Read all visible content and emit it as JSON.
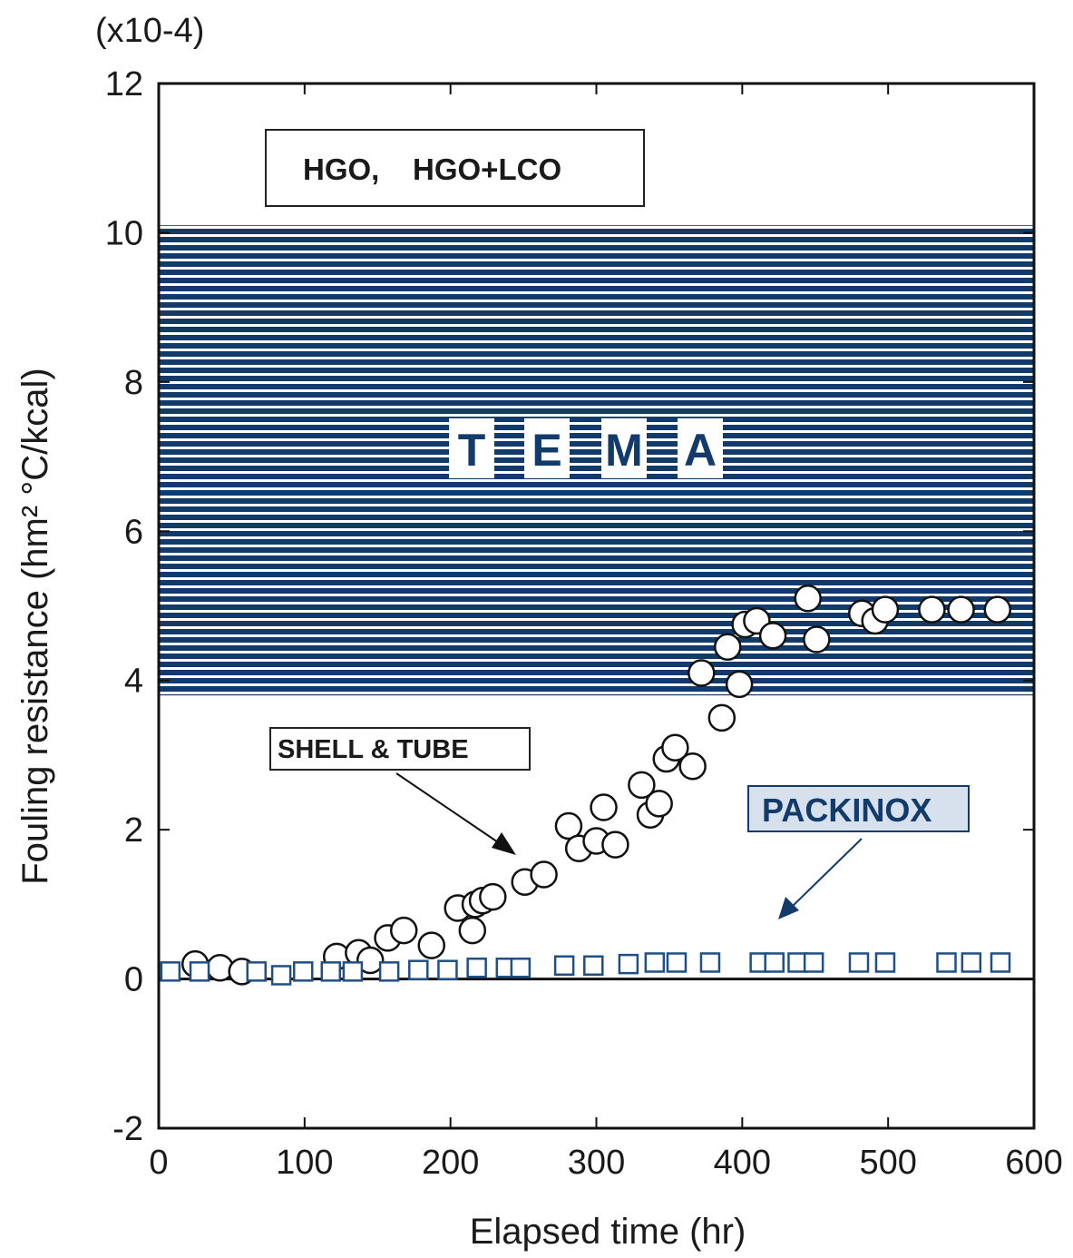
{
  "chart_data": {
    "type": "scatter",
    "title": "",
    "xlabel": "Elapsed time (hr)",
    "ylabel": "Fouling resistance (hm² °C/kcal)",
    "y_multiplier": "(x10-4)",
    "xlim": [
      0,
      600
    ],
    "ylim": [
      -2,
      12
    ],
    "x_ticks": [
      "0",
      "100",
      "200",
      "300",
      "400",
      "500",
      "600"
    ],
    "y_ticks": [
      "-2",
      "0",
      "2",
      "4",
      "6",
      "8",
      "10",
      "12"
    ],
    "x_tick_values": [
      0,
      100,
      200,
      300,
      400,
      500,
      600
    ],
    "y_tick_values": [
      -2,
      0,
      2,
      4,
      6,
      8,
      10,
      12
    ],
    "grid": false,
    "legend_box": "HGO,    HGO+LCO",
    "band": {
      "label": "T E M A",
      "letters": [
        "T",
        "E",
        "M",
        "A"
      ],
      "y_range": [
        3.8,
        10.1
      ],
      "color": "#123a6b"
    },
    "series": [
      {
        "name": "SHELL & TUBE",
        "marker": "circle",
        "x": [
          25,
          42,
          57,
          122,
          137,
          145,
          157,
          168,
          187,
          205,
          215,
          217,
          222,
          229,
          251,
          264,
          281,
          288,
          300,
          305,
          313,
          331,
          337,
          343,
          348,
          354,
          366,
          372,
          386,
          390,
          398,
          402,
          410,
          421,
          445,
          451,
          482,
          491,
          498,
          530,
          550,
          575
        ],
        "y": [
          0.2,
          0.15,
          0.1,
          0.3,
          0.35,
          0.25,
          0.55,
          0.65,
          0.45,
          0.95,
          0.65,
          1.0,
          1.05,
          1.1,
          1.3,
          1.4,
          2.05,
          1.75,
          1.85,
          2.3,
          1.8,
          2.6,
          2.2,
          2.35,
          2.95,
          3.1,
          2.85,
          4.1,
          3.5,
          4.45,
          3.95,
          4.75,
          4.8,
          4.6,
          5.1,
          4.55,
          4.9,
          4.8,
          4.95,
          4.95,
          4.95,
          4.95
        ]
      },
      {
        "name": "PACKINOX",
        "marker": "square",
        "color": "#1f4f85",
        "x": [
          8,
          28,
          67,
          84,
          99,
          118,
          133,
          158,
          178,
          198,
          218,
          238,
          248,
          278,
          298,
          322,
          340,
          355,
          378,
          412,
          422,
          438,
          449,
          480,
          498,
          540,
          557,
          577
        ],
        "y": [
          0.1,
          0.1,
          0.1,
          0.05,
          0.1,
          0.1,
          0.1,
          0.1,
          0.12,
          0.12,
          0.15,
          0.15,
          0.15,
          0.18,
          0.18,
          0.2,
          0.22,
          0.22,
          0.22,
          0.22,
          0.22,
          0.22,
          0.22,
          0.22,
          0.22,
          0.22,
          0.22,
          0.22
        ]
      }
    ],
    "annotations": {
      "shell_label": "SHELL & TUBE",
      "packinox_label": "PACKINOX"
    }
  }
}
